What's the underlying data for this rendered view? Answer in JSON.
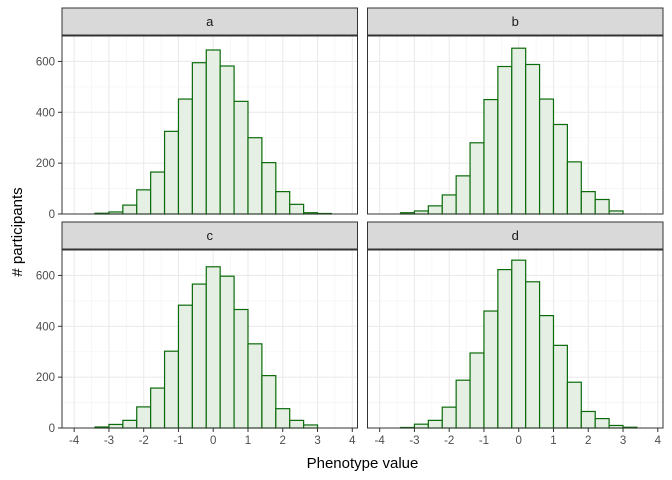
{
  "chart_data": {
    "type": "bar",
    "layout": "facet-wrap 2x2",
    "xlabel": "Phenotype value",
    "ylabel": "# participants",
    "xlim": [
      -4.35,
      4.15
    ],
    "ylim": [
      0,
      700
    ],
    "x_ticks": [
      -4,
      -3,
      -2,
      -1,
      0,
      1,
      2,
      3,
      4
    ],
    "x_tick_labels": [
      "-4",
      "-3",
      "-2",
      "-1",
      "0",
      "1",
      "2",
      "3",
      "4"
    ],
    "y_ticks": [
      0,
      200,
      400,
      600
    ],
    "y_tick_labels": [
      "0",
      "200",
      "400",
      "600"
    ],
    "grid": true,
    "bin_width": 0.4,
    "bin_centers": [
      -4,
      -3.6,
      -3.2,
      -2.8,
      -2.4,
      -2,
      -1.6,
      -1.2,
      -0.8,
      -0.4,
      0,
      0.4,
      0.8,
      1.2,
      1.6,
      2,
      2.4,
      2.8,
      3.2,
      3.6
    ],
    "colors": {
      "bar_fill": "#e5efe3",
      "bar_stroke": "#0a6b0a",
      "strip_fill": "#d9d9d9",
      "panel_border": "#333333",
      "grid_major": "#ebebeb",
      "grid_minor": "#f5f5f5"
    },
    "facets": [
      {
        "label": "a",
        "values": [
          0,
          0,
          3,
          8,
          35,
          95,
          165,
          325,
          452,
          595,
          645,
          582,
          443,
          300,
          202,
          88,
          38,
          5,
          2,
          0
        ]
      },
      {
        "label": "b",
        "values": [
          0,
          0,
          5,
          12,
          32,
          75,
          150,
          280,
          450,
          580,
          652,
          588,
          452,
          352,
          205,
          88,
          57,
          12,
          0,
          0
        ]
      },
      {
        "label": "c",
        "values": [
          0,
          0,
          4,
          14,
          30,
          83,
          157,
          302,
          483,
          566,
          634,
          597,
          466,
          331,
          206,
          76,
          30,
          12,
          0,
          0
        ]
      },
      {
        "label": "d",
        "values": [
          0,
          0,
          2,
          15,
          30,
          82,
          188,
          295,
          460,
          623,
          660,
          575,
          442,
          325,
          180,
          65,
          37,
          10,
          3,
          0
        ]
      }
    ]
  }
}
